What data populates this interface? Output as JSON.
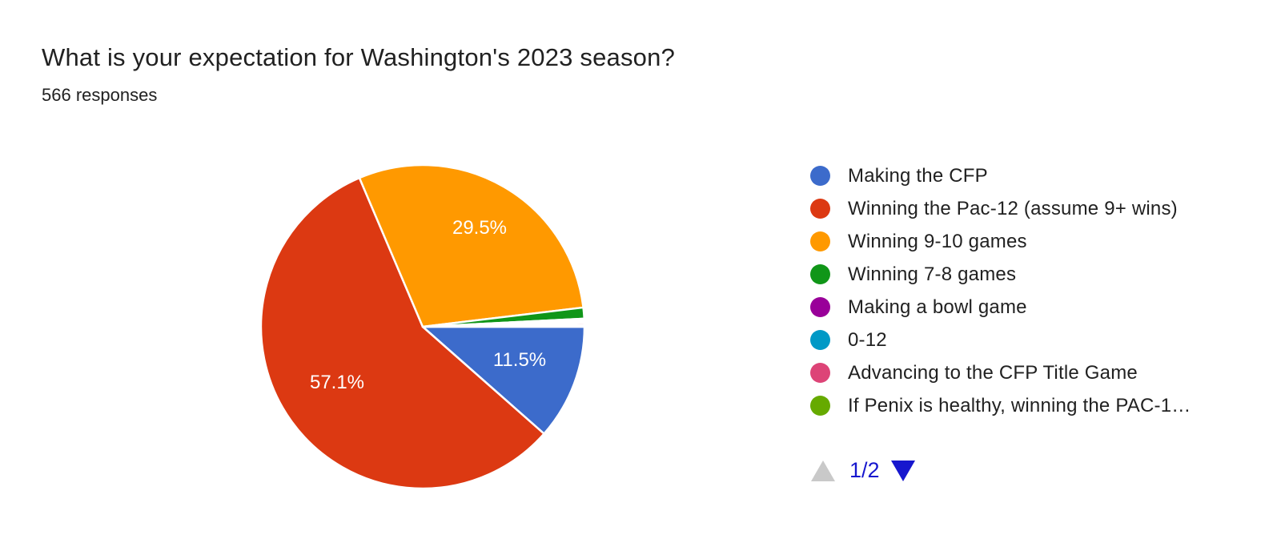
{
  "chart_data": {
    "type": "pie",
    "title": "What is your expectation for Washington's 2023 season?",
    "subtitle": "566 responses",
    "legend_position": "right",
    "start_angle": "3-oclock",
    "direction": "clockwise",
    "labeled_values_pct": {
      "Making the CFP": 11.5,
      "Winning the Pac-12 (assume 9+ wins)": 57.1,
      "Winning 9-10 games": 29.5
    },
    "slices": [
      {
        "label": "Making the CFP",
        "pct": 11.5,
        "shown_label": "11.5%",
        "color": "#3C6BCB"
      },
      {
        "label": "Winning the Pac-12 (assume 9+ wins)",
        "pct": 57.1,
        "shown_label": "57.1%",
        "color": "#DC3912"
      },
      {
        "label": "Winning 9-10 games",
        "pct": 29.5,
        "shown_label": "29.5%",
        "color": "#FF9900"
      },
      {
        "label": "Winning 7-8 games",
        "pct": 1.1,
        "shown_label": "",
        "color": "#109618"
      },
      {
        "label": "Making a bowl game",
        "pct": 0.2,
        "shown_label": "",
        "color": "#990099"
      },
      {
        "label": "0-12",
        "pct": 0.2,
        "shown_label": "",
        "color": "#0099C6"
      },
      {
        "label": "Advancing to the CFP Title Game",
        "pct": 0.2,
        "shown_label": "",
        "color": "#DD4477"
      },
      {
        "label": "If Penix is healthy, winning the PAC-1…",
        "pct": 0.2,
        "shown_label": "",
        "color": "#66AA00"
      }
    ]
  },
  "pagination": {
    "indicator": "1/2",
    "up_arrow_color": "#C9C9C9",
    "down_arrow_color": "#1717CE",
    "text_color": "#1717CE"
  }
}
